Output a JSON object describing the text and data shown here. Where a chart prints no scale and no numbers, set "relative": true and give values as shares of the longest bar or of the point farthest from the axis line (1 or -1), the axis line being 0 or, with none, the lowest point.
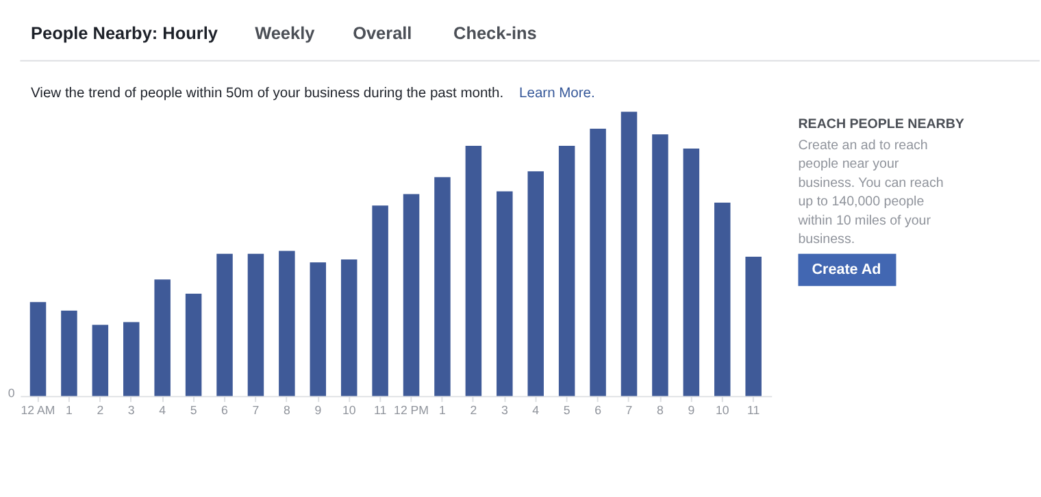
{
  "chart_data": {
    "type": "bar",
    "subtitle": "View the trend of people within 50m of your business during the past month.",
    "categories": [
      "12 AM",
      "1",
      "2",
      "3",
      "4",
      "5",
      "6",
      "7",
      "8",
      "9",
      "10",
      "11",
      "12 PM",
      "1",
      "2",
      "3",
      "4",
      "5",
      "6",
      "7",
      "8",
      "9",
      "10",
      "11"
    ],
    "values": [
      0.33,
      0.3,
      0.25,
      0.26,
      0.41,
      0.36,
      0.5,
      0.5,
      0.51,
      0.47,
      0.48,
      0.67,
      0.71,
      0.77,
      0.88,
      0.72,
      0.79,
      0.88,
      0.94,
      1,
      0.92,
      0.87,
      0.68,
      0.49
    ],
    "color": "#3f5a98",
    "relative": true,
    "grid": false,
    "annotations": [
      "People Nearby: Hourly",
      "Weekly",
      "Overall",
      "Check-ins",
      "Learn More.",
      "REACH PEOPLE NEARBY",
      "Create an ad to reach people near your business. You can reach up to 140,000 people within 10 miles of your business.",
      "Create Ad",
      "0"
    ]
  }
}
